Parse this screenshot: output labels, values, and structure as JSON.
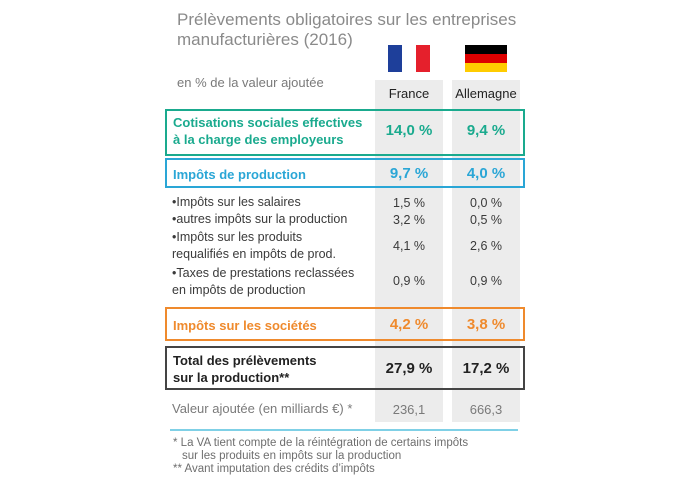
{
  "title": "Prélèvements obligatoires sur les entreprises manufacturières (2016)",
  "unit_label": "en % de la valeur ajoutée",
  "countries": [
    {
      "name": "France",
      "flag_icon": "flag-france-icon"
    },
    {
      "name": "Allemagne",
      "flag_icon": "flag-germany-icon"
    }
  ],
  "colors": {
    "green": "#1aaa8e",
    "blue": "#2aa6d6",
    "orange": "#ef8a2d",
    "dark": "#222222",
    "column_bg": "#ececec"
  },
  "chart_data": {
    "type": "table",
    "columns": [
      "France",
      "Allemagne"
    ],
    "rows": [
      {
        "label_lines": [
          "Cotisations sociales effectives",
          "à la charge des employeurs"
        ],
        "values": [
          "14,0 %",
          "9,4 %"
        ],
        "style": "green"
      },
      {
        "label_lines": [
          "Impôts de production"
        ],
        "values": [
          "9,7 %",
          "4,0 %"
        ],
        "style": "blue"
      },
      {
        "label_lines": [
          "•Impôts sur les salaires"
        ],
        "values": [
          "1,5 %",
          "0,0 %"
        ],
        "style": "sub"
      },
      {
        "label_lines": [
          "•autres impôts sur la production"
        ],
        "values": [
          "3,2 %",
          "0,5 %"
        ],
        "style": "sub"
      },
      {
        "label_lines": [
          "•Impôts sur les produits",
          "requalifiés en impôts de prod."
        ],
        "values": [
          "4,1 %",
          "2,6 %"
        ],
        "style": "sub"
      },
      {
        "label_lines": [
          "•Taxes de prestations reclassées",
          "en impôts de production"
        ],
        "values": [
          "0,9 %",
          "0,9 %"
        ],
        "style": "sub"
      },
      {
        "label_lines": [
          "Impôts sur les sociétés"
        ],
        "values": [
          "4,2 %",
          "3,8 %"
        ],
        "style": "orange"
      },
      {
        "label_lines": [
          "Total des prélèvements",
          "sur la production**"
        ],
        "values": [
          "27,9 %",
          "17,2 %"
        ],
        "style": "dark"
      },
      {
        "label_lines": [
          "Valeur ajoutée (en milliards €) *"
        ],
        "values": [
          "236,1",
          "666,3"
        ],
        "style": "va"
      }
    ]
  },
  "footnotes": [
    "* La VA tient compte de la réintégration de certains impôts",
    "sur les produits en impôts sur la production",
    "** Avant imputation des crédits d’impôts"
  ]
}
